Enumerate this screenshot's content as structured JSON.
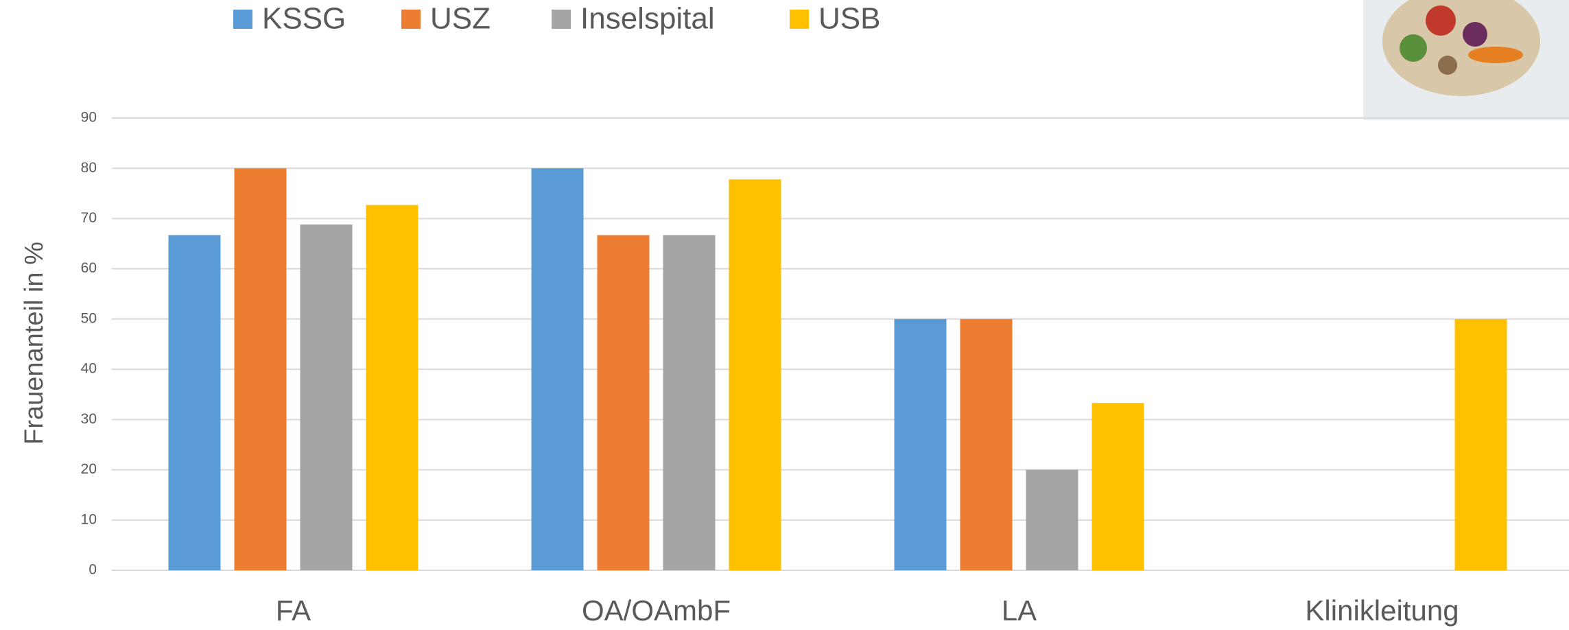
{
  "chart_data": {
    "type": "bar",
    "y_label": "Frauenanteil in %",
    "categories": [
      "FA",
      "OA/OAmbF",
      "LA",
      "Klinikleitung"
    ],
    "series": [
      {
        "name": "KSSG",
        "color": "#5b9bd5",
        "values": [
          66.7,
          80,
          50,
          null
        ]
      },
      {
        "name": "USZ",
        "color": "#ed7d31",
        "values": [
          80,
          66.7,
          50,
          null
        ]
      },
      {
        "name": "Inselspital",
        "color": "#a5a5a5",
        "values": [
          68.8,
          66.7,
          20,
          null
        ]
      },
      {
        "name": "USB",
        "color": "#ffc000",
        "values": [
          72.7,
          77.8,
          33.3,
          50
        ]
      }
    ],
    "ylim": [
      0,
      90
    ],
    "yticks": [
      0,
      10,
      20,
      30,
      40,
      50,
      60,
      70,
      80,
      90
    ],
    "grid": true,
    "legend": "top"
  }
}
